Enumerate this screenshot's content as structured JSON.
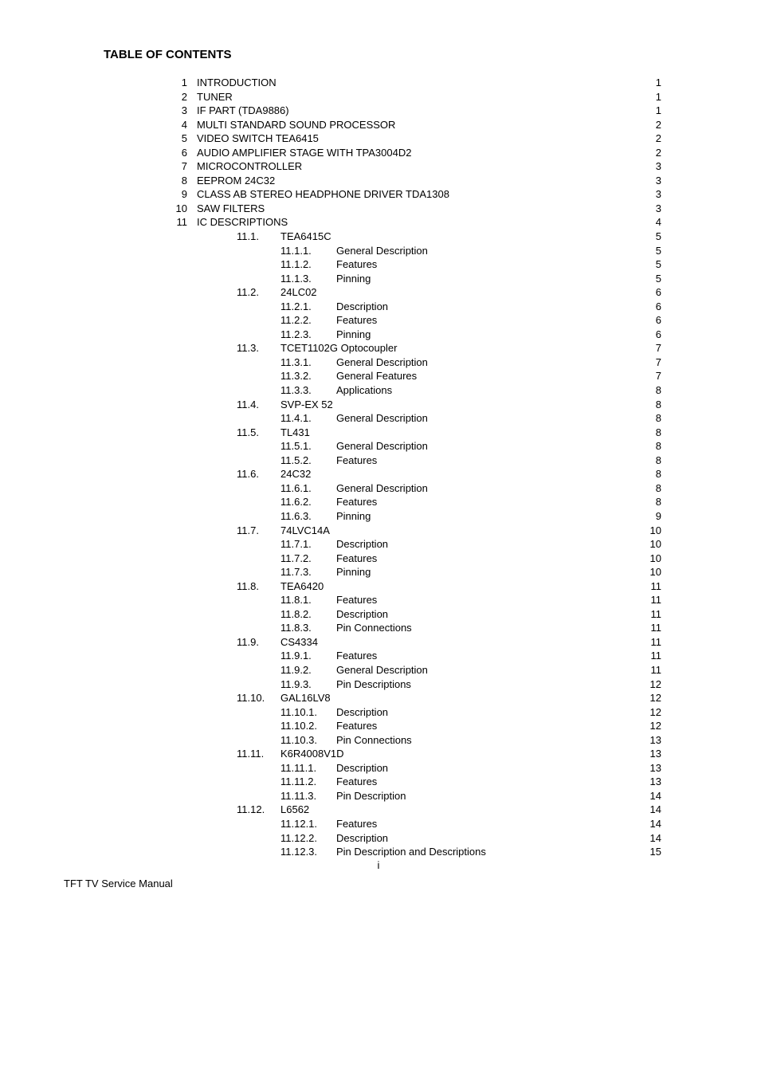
{
  "title": "TABLE OF CONTENTS",
  "footer": "TFT TV Service Manual",
  "page_footer": "i",
  "entries": [
    {
      "num": "1",
      "title": "INTRODUCTION",
      "page": "1"
    },
    {
      "num": "2",
      "title": "TUNER",
      "page": "1"
    },
    {
      "num": "3",
      "title": "IF PART (TDA9886)",
      "page": "1"
    },
    {
      "num": "4",
      "title": "MULTI STANDARD SOUND PROCESSOR",
      "page": "2"
    },
    {
      "num": "5",
      "title": "VIDEO SWITCH TEA6415",
      "page": "2"
    },
    {
      "num": "6",
      "title": "AUDIO AMPLIFIER STAGE WITH TPA3004D2",
      "page": "2"
    },
    {
      "num": "7",
      "title": "MICROCONTROLLER",
      "page": "3"
    },
    {
      "num": "8",
      "title": "EEPROM 24C32",
      "page": "3"
    },
    {
      "num": "9",
      "title": "CLASS AB STEREO HEADPHONE DRIVER TDA1308",
      "page": "3"
    },
    {
      "num": "10",
      "title": "SAW FILTERS",
      "page": "3"
    },
    {
      "num": "11",
      "title": "IC DESCRIPTIONS",
      "page": "4"
    },
    {
      "sub": "11.1.",
      "title": "TEA6415C",
      "page": "5"
    },
    {
      "subsub": "11.1.1.",
      "title": "General Description",
      "page": "5"
    },
    {
      "subsub": "11.1.2.",
      "title": "Features",
      "page": "5"
    },
    {
      "subsub": "11.1.3.",
      "title": "Pinning",
      "page": "5"
    },
    {
      "sub": "11.2.",
      "title": "24LC02",
      "page": "6"
    },
    {
      "subsub": "11.2.1.",
      "title": "Description",
      "page": "6"
    },
    {
      "subsub": "11.2.2.",
      "title": "Features",
      "page": "6"
    },
    {
      "subsub": "11.2.3.",
      "title": "Pinning",
      "page": "6"
    },
    {
      "sub": "11.3.",
      "title": "TCET1102G Optocoupler",
      "page": "7"
    },
    {
      "subsub": "11.3.1.",
      "title": "General Description",
      "page": "7"
    },
    {
      "subsub": "11.3.2.",
      "title": "General Features",
      "page": "7"
    },
    {
      "subsub": "11.3.3.",
      "title": "Applications",
      "page": "8"
    },
    {
      "sub": "11.4.",
      "title": "SVP-EX 52",
      "page": "8"
    },
    {
      "subsub": "11.4.1.",
      "title": "General Description",
      "page": "8"
    },
    {
      "sub": "11.5.",
      "title": "TL431",
      "page": "8"
    },
    {
      "subsub": "11.5.1.",
      "title": "General Description",
      "page": "8"
    },
    {
      "subsub": "11.5.2.",
      "title": "Features",
      "page": "8"
    },
    {
      "sub": "11.6.",
      "title": "24C32",
      "page": "8"
    },
    {
      "subsub": "11.6.1.",
      "title": "General Description",
      "page": "8"
    },
    {
      "subsub": "11.6.2.",
      "title": "Features",
      "page": "8"
    },
    {
      "subsub": "11.6.3.",
      "title": "Pinning",
      "page": "9"
    },
    {
      "sub": "11.7.",
      "title": "74LVC14A",
      "page": "10"
    },
    {
      "subsub": "11.7.1.",
      "title": "Description",
      "page": "10"
    },
    {
      "subsub": "11.7.2.",
      "title": "Features",
      "page": "10"
    },
    {
      "subsub": "11.7.3.",
      "title": "Pinning",
      "page": "10"
    },
    {
      "sub": "11.8.",
      "title": "TEA6420",
      "page": "11"
    },
    {
      "subsub": "11.8.1.",
      "title": "Features",
      "page": "11"
    },
    {
      "subsub": "11.8.2.",
      "title": "Description",
      "page": "11"
    },
    {
      "subsub": "11.8.3.",
      "title": "Pin Connections",
      "page": "11"
    },
    {
      "sub": "11.9.",
      "title": "CS4334",
      "page": "11"
    },
    {
      "subsub": "11.9.1.",
      "title": "Features",
      "page": "11"
    },
    {
      "subsub": "11.9.2.",
      "title": "General Description",
      "page": "11"
    },
    {
      "subsub": "11.9.3.",
      "title": "Pin Descriptions",
      "page": "12"
    },
    {
      "sub": "11.10.",
      "title": "GAL16LV8",
      "page": "12"
    },
    {
      "subsub": "11.10.1.",
      "title": "Description",
      "page": "12"
    },
    {
      "subsub": "11.10.2.",
      "title": "Features",
      "page": "12"
    },
    {
      "subsub": "11.10.3.",
      "title": "Pin Connections",
      "page": "13"
    },
    {
      "sub": "11.11.",
      "title": "K6R4008V1D",
      "page": "13"
    },
    {
      "subsub": "11.11.1.",
      "title": "Description",
      "page": "13"
    },
    {
      "subsub": "11.11.2.",
      "title": "Features",
      "page": "13"
    },
    {
      "subsub": "11.11.3.",
      "title": "Pin Description",
      "page": "14"
    },
    {
      "sub": "11.12.",
      "title": "L6562",
      "page": "14"
    },
    {
      "subsub": "11.12.1.",
      "title": "Features",
      "page": "14"
    },
    {
      "subsub": "11.12.2.",
      "title": "Description",
      "page": "14"
    },
    {
      "subsub": "11.12.3.",
      "title": "Pin Description and Descriptions",
      "page": "15"
    }
  ]
}
